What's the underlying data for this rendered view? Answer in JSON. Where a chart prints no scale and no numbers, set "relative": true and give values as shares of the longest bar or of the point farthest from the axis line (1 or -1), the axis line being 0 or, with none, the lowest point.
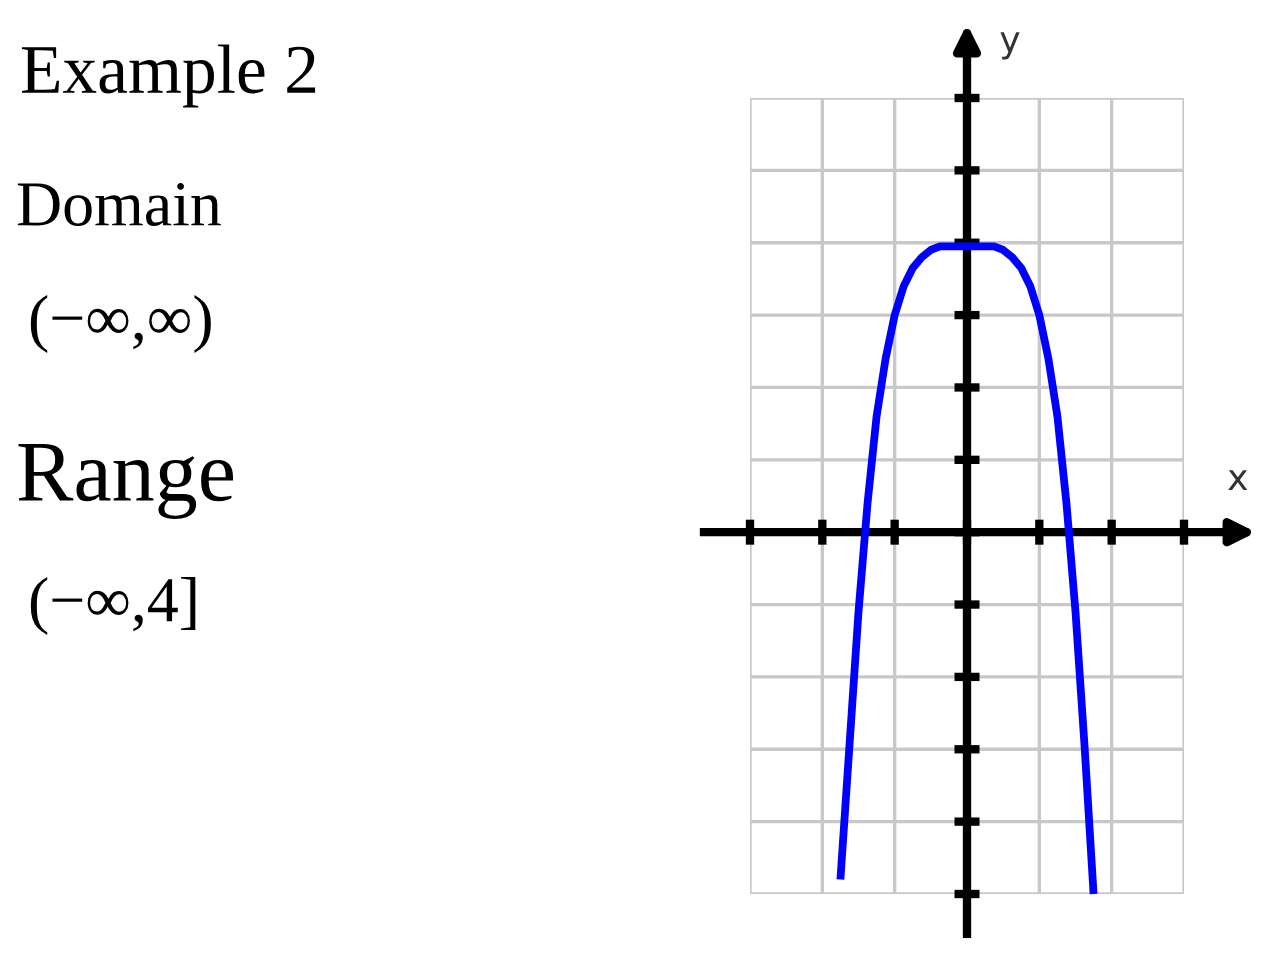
{
  "chart_data": {
    "type": "line",
    "title": "Example 2",
    "xlabel": "x",
    "annotations": [
      "Domain",
      "(−∞,∞)",
      "Range",
      "(−∞,4]",
      "y"
    ],
    "relative": true,
    "grid": true,
    "tick_labels": false,
    "categories": [
      null,
      null,
      null,
      null,
      null,
      null,
      null,
      null,
      null,
      null,
      null,
      null,
      null,
      null,
      null,
      null,
      null,
      null,
      null,
      null,
      null,
      null,
      null,
      null,
      null,
      null,
      null,
      null,
      null
    ],
    "series": [
      {
        "color": "#0000ff",
        "values": [
          -0.96,
          -0.59,
          -0.22,
          0.08,
          0.32,
          0.48,
          0.6,
          0.68,
          0.73,
          0.76,
          0.78,
          0.79,
          0.79,
          0.79,
          0.79,
          0.79,
          0.79,
          0.79,
          0.78,
          0.76,
          0.73,
          0.68,
          0.6,
          0.48,
          0.32,
          0.08,
          -0.22,
          -0.59,
          -1
        ]
      }
    ]
  }
}
